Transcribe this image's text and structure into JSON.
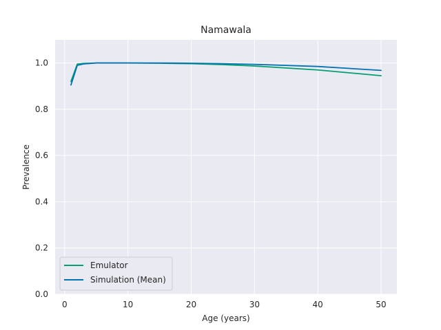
{
  "chart_data": {
    "type": "line",
    "title": "Namawala",
    "xlabel": "Age (years)",
    "ylabel": "Prevalence",
    "xlim": [
      -1.5,
      52.5
    ],
    "ylim": [
      0.0,
      1.1
    ],
    "xticks": [
      0,
      10,
      20,
      30,
      40,
      50
    ],
    "yticks": [
      0.0,
      0.2,
      0.4,
      0.6,
      0.8,
      1.0
    ],
    "xtick_labels": [
      "0",
      "10",
      "20",
      "30",
      "40",
      "50"
    ],
    "ytick_labels": [
      "0.0",
      "0.2",
      "0.4",
      "0.6",
      "0.8",
      "1.0"
    ],
    "grid": true,
    "legend_position": "lower-left",
    "series": [
      {
        "name": "Emulator",
        "color": "#009e73",
        "x": [
          1,
          2,
          3,
          5,
          10,
          15,
          20,
          25,
          30,
          40,
          50
        ],
        "y": [
          0.92,
          0.995,
          0.998,
          1.0,
          1.0,
          0.999,
          0.997,
          0.993,
          0.987,
          0.97,
          0.945
        ]
      },
      {
        "name": "Simulation (Mean)",
        "color": "#0072b2",
        "x": [
          1,
          2,
          3,
          5,
          10,
          15,
          20,
          25,
          30,
          40,
          50
        ],
        "y": [
          0.905,
          0.99,
          0.996,
          1.0,
          1.0,
          1.0,
          0.999,
          0.997,
          0.994,
          0.985,
          0.968
        ]
      }
    ]
  }
}
